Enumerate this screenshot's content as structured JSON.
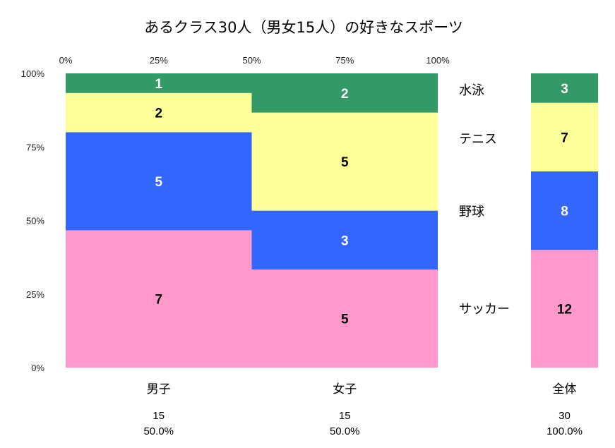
{
  "chart_data": {
    "type": "mosaic",
    "title": "あるクラス30人（男女15人）の好きなスポーツ",
    "x_ticks": [
      "0%",
      "25%",
      "50%",
      "75%",
      "100%"
    ],
    "y_ticks": [
      "0%",
      "25%",
      "50%",
      "75%",
      "100%"
    ],
    "series": [
      {
        "name": "サッカー",
        "color": "#FF99CC",
        "label_color": "#000000"
      },
      {
        "name": "野球",
        "color": "#3366FF",
        "label_color": "#FFFFFF"
      },
      {
        "name": "テニス",
        "color": "#FFFF99",
        "label_color": "#000000"
      },
      {
        "name": "水泳",
        "color": "#339966",
        "label_color": "#FFFFFF"
      }
    ],
    "groups": [
      {
        "name": "男子",
        "total": "15",
        "percent": "50.0%",
        "values": [
          7,
          5,
          2,
          1
        ]
      },
      {
        "name": "女子",
        "total": "15",
        "percent": "50.0%",
        "values": [
          5,
          3,
          5,
          2
        ]
      }
    ],
    "overall": {
      "name": "全体",
      "total": "30",
      "percent": "100.0%",
      "values": [
        12,
        8,
        7,
        3
      ]
    },
    "grid": false,
    "legend_position": "right"
  }
}
